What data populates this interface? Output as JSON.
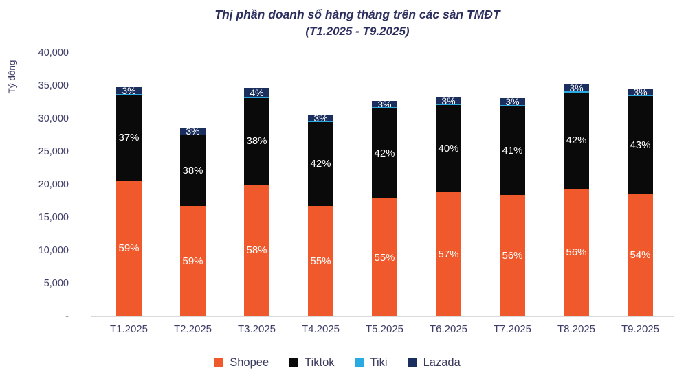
{
  "chart_data": {
    "type": "bar",
    "stacked": true,
    "title": "Thị phần doanh số hàng tháng trên các sàn TMĐT",
    "subtitle": "(T1.2025 - T9.2025)",
    "ylabel": "Tỷ đồng",
    "ylim": [
      0,
      40000
    ],
    "grid": false,
    "legend_position": "bottom",
    "categories": [
      "T1.2025",
      "T2.2025",
      "T3.2025",
      "T4.2025",
      "T5.2025",
      "T6.2025",
      "T7.2025",
      "T8.2025",
      "T9.2025"
    ],
    "totals_ty_dong_est": [
      34800,
      28500,
      34700,
      30600,
      32700,
      33200,
      33100,
      35200,
      34600
    ],
    "series": [
      {
        "name": "Shopee",
        "color": "#F0592B",
        "share_pct": [
          59,
          59,
          58,
          55,
          55,
          57,
          56,
          56,
          54
        ]
      },
      {
        "name": "Tiktok",
        "color": "#0A0A0A",
        "share_pct": [
          37,
          38,
          38,
          42,
          42,
          40,
          41,
          42,
          43
        ]
      },
      {
        "name": "Tiki",
        "color": "#29ABE2",
        "share_pct": null
      },
      {
        "name": "Lazada",
        "color": "#1A2F5E",
        "share_pct": [
          3,
          3,
          4,
          3,
          3,
          3,
          3,
          3,
          3
        ]
      }
    ],
    "tiki_sliver_pct_hint": 0.5,
    "y_ticks": [
      {
        "label": "40,000",
        "value": 40000
      },
      {
        "label": "35,000",
        "value": 35000
      },
      {
        "label": "30,000",
        "value": 30000
      },
      {
        "label": "25,000",
        "value": 25000
      },
      {
        "label": "20,000",
        "value": 20000
      },
      {
        "label": "15,000",
        "value": 15000
      },
      {
        "label": "10,000",
        "value": 10000
      },
      {
        "label": "5,000",
        "value": 5000
      },
      {
        "label": "-",
        "value": 0
      }
    ]
  },
  "legend": {
    "items": [
      {
        "label": "Shopee",
        "color": "#F0592B"
      },
      {
        "label": "Tiktok",
        "color": "#0A0A0A"
      },
      {
        "label": "Tiki",
        "color": "#29ABE2"
      },
      {
        "label": "Lazada",
        "color": "#1A2F5E"
      }
    ]
  }
}
